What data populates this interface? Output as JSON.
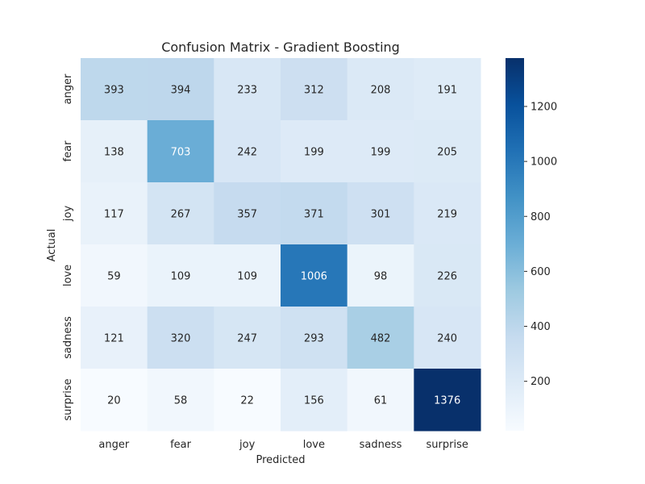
{
  "chart_data": {
    "type": "heatmap",
    "title": "Confusion Matrix - Gradient Boosting",
    "xlabel": "Predicted",
    "ylabel": "Actual",
    "x_categories": [
      "anger",
      "fear",
      "joy",
      "love",
      "sadness",
      "surprise"
    ],
    "y_categories": [
      "anger",
      "fear",
      "joy",
      "love",
      "sadness",
      "surprise"
    ],
    "values": [
      [
        393,
        394,
        233,
        312,
        208,
        191
      ],
      [
        138,
        703,
        242,
        199,
        199,
        205
      ],
      [
        117,
        267,
        357,
        371,
        301,
        219
      ],
      [
        59,
        109,
        109,
        1006,
        98,
        226
      ],
      [
        121,
        320,
        247,
        293,
        482,
        240
      ],
      [
        20,
        58,
        22,
        156,
        61,
        1376
      ]
    ],
    "colorbar": {
      "min": 20,
      "max": 1376,
      "ticks": [
        200,
        400,
        600,
        800,
        1000,
        1200
      ],
      "colormap": "Blues",
      "low_color": "#f7fbff",
      "high_color": "#08306b"
    },
    "grid": false,
    "legend": "colorbar-right"
  }
}
